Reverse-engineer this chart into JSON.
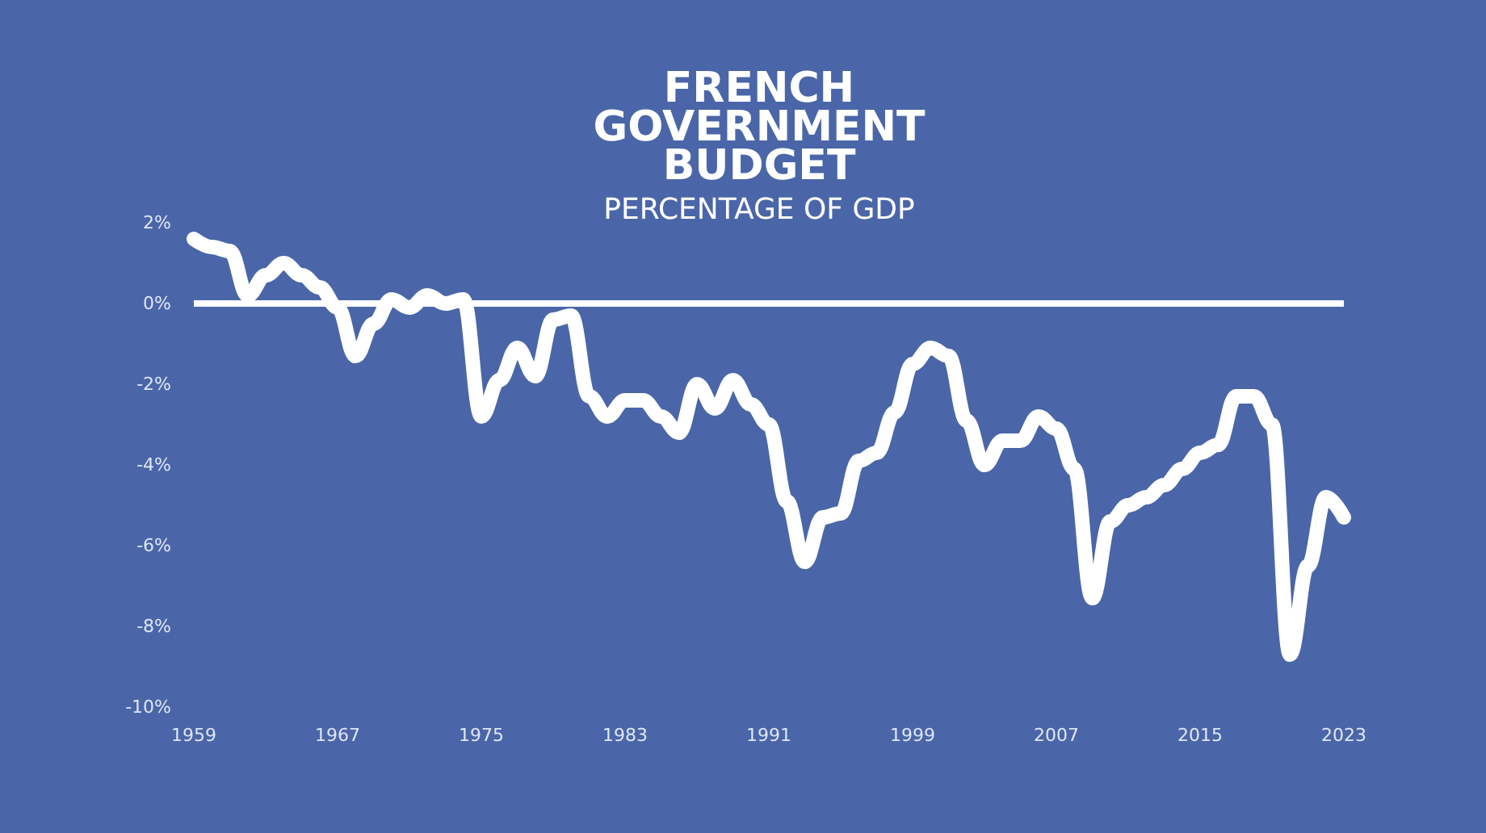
{
  "chart_data": {
    "type": "line",
    "title": "FRENCH\nGOVERNMENT\nBUDGET",
    "subtitle": "PERCENTAGE OF GDP",
    "x": [
      1959,
      1960,
      1961,
      1962,
      1963,
      1964,
      1965,
      1966,
      1967,
      1968,
      1969,
      1970,
      1971,
      1972,
      1973,
      1974,
      1975,
      1976,
      1977,
      1978,
      1979,
      1980,
      1981,
      1982,
      1983,
      1984,
      1985,
      1986,
      1987,
      1988,
      1989,
      1990,
      1991,
      1992,
      1993,
      1994,
      1995,
      1996,
      1997,
      1998,
      1999,
      2000,
      2001,
      2002,
      2003,
      2004,
      2005,
      2006,
      2007,
      2008,
      2009,
      2010,
      2011,
      2012,
      2013,
      2014,
      2015,
      2016,
      2017,
      2018,
      2019,
      2020,
      2021,
      2022,
      2023
    ],
    "series": [
      {
        "color": "#ffffff",
        "values": [
          1.6,
          1.4,
          1.3,
          0.2,
          0.7,
          1.0,
          0.7,
          0.4,
          -0.1,
          -1.3,
          -0.5,
          0.1,
          -0.1,
          0.2,
          0.0,
          0.1,
          -2.8,
          -1.9,
          -1.1,
          -1.8,
          -0.4,
          -0.3,
          -2.3,
          -2.8,
          -2.4,
          -2.4,
          -2.8,
          -3.2,
          -2.0,
          -2.6,
          -1.9,
          -2.5,
          -3.0,
          -4.9,
          -6.4,
          -5.3,
          -5.2,
          -3.9,
          -3.7,
          -2.7,
          -1.5,
          -1.1,
          -1.3,
          -2.9,
          -4.0,
          -3.4,
          -3.4,
          -2.8,
          -3.1,
          -4.1,
          -7.3,
          -5.4,
          -5.0,
          -4.8,
          -4.5,
          -4.1,
          -3.7,
          -3.5,
          -2.3,
          -2.3,
          -3.0,
          -8.7,
          -6.5,
          -4.8,
          -5.3
        ]
      }
    ],
    "xlim": [
      1959,
      2023
    ],
    "xticks": [
      1959,
      1967,
      1975,
      1983,
      1991,
      1999,
      2007,
      2015,
      2023
    ],
    "ylim": [
      -10,
      2
    ],
    "yticks": [
      {
        "value": -10,
        "label": "-10%"
      },
      {
        "value": -8,
        "label": "-8%"
      },
      {
        "value": -6,
        "label": "-6%"
      },
      {
        "value": -4,
        "label": "-4%"
      },
      {
        "value": -2,
        "label": "-2%"
      },
      {
        "value": 0,
        "label": "0%"
      },
      {
        "value": 2,
        "label": "2%"
      }
    ],
    "ref_lines": [
      {
        "axis": "y",
        "value": 0,
        "color": "#ffffff",
        "line_style": "solid"
      }
    ],
    "grid": false,
    "line_style": "solid"
  }
}
